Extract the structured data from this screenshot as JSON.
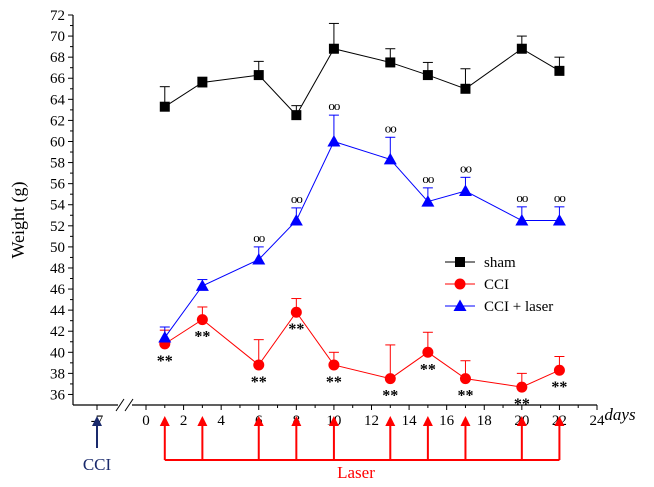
{
  "chart_data": {
    "type": "line",
    "ylabel": "Weight (g)",
    "xlabel": "days",
    "ylim": [
      35,
      72
    ],
    "xlim": [
      0,
      24
    ],
    "y_ticks": [
      36,
      38,
      40,
      42,
      44,
      46,
      48,
      50,
      52,
      54,
      56,
      58,
      60,
      62,
      64,
      66,
      68,
      70,
      72
    ],
    "x_ticks": [
      0,
      2,
      4,
      6,
      8,
      10,
      12,
      14,
      16,
      18,
      20,
      22,
      24
    ],
    "pre_tick": "-7",
    "x": [
      1,
      3,
      6,
      8,
      10,
      13,
      15,
      17,
      20,
      22
    ],
    "series": [
      {
        "name": "sham",
        "marker": "square",
        "color": "#000000",
        "values": [
          63.3,
          65.6,
          66.3,
          62.5,
          68.8,
          67.5,
          66.3,
          65.0,
          68.8,
          66.7
        ],
        "errors": [
          1.9,
          0.5,
          1.3,
          0.9,
          2.4,
          1.3,
          1.2,
          1.9,
          1.2,
          1.3
        ]
      },
      {
        "name": "CCI",
        "marker": "circle",
        "color": "#ff0000",
        "values": [
          40.8,
          43.1,
          38.8,
          43.8,
          38.8,
          37.5,
          40.0,
          37.5,
          36.7,
          38.3
        ],
        "errors": [
          1.3,
          1.2,
          2.4,
          1.3,
          1.2,
          3.2,
          1.9,
          1.7,
          1.3,
          1.3
        ]
      },
      {
        "name": "CCI + laser",
        "marker": "triangle",
        "color": "#0000ff",
        "values": [
          41.4,
          46.3,
          48.8,
          52.5,
          60.0,
          58.3,
          54.3,
          55.3,
          52.5,
          52.5
        ],
        "errors": [
          1.0,
          0.6,
          1.2,
          1.2,
          2.5,
          2.1,
          1.3,
          1.3,
          1.3,
          1.3
        ]
      }
    ],
    "annotations": {
      "cci_stars": "**",
      "laser_circles": "oo"
    },
    "legend_placement": "right-middle",
    "events": {
      "cci_label": "CCI",
      "cci_day": -7,
      "laser_label": "Laser",
      "laser_days": [
        1,
        3,
        6,
        8,
        10,
        13,
        15,
        17,
        20,
        22
      ]
    },
    "colors": {
      "cci_arrow": "#1a2a6c",
      "laser_arrow": "#ff0000"
    }
  }
}
